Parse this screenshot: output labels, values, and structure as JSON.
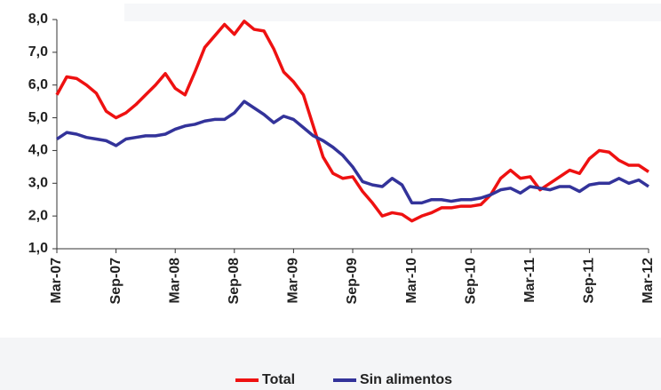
{
  "chart_data": {
    "type": "line",
    "categories": [
      "Mar-07",
      null,
      null,
      null,
      null,
      null,
      "Sep-07",
      null,
      null,
      null,
      null,
      null,
      "Mar-08",
      null,
      null,
      null,
      null,
      null,
      "Sep-08",
      null,
      null,
      null,
      null,
      null,
      "Mar-09",
      null,
      null,
      null,
      null,
      null,
      "Sep-09",
      null,
      null,
      null,
      null,
      null,
      "Mar-10",
      null,
      null,
      null,
      null,
      null,
      "Sep-10",
      null,
      null,
      null,
      null,
      null,
      "Mar-11",
      null,
      null,
      null,
      null,
      null,
      "Sep-11",
      null,
      null,
      null,
      null,
      null,
      "Mar-12"
    ],
    "series": [
      {
        "name": "Total",
        "color": "#ee1111",
        "values": [
          5.7,
          6.25,
          6.2,
          6.0,
          5.75,
          5.2,
          5.0,
          5.15,
          5.4,
          5.7,
          6.0,
          6.35,
          5.9,
          5.7,
          6.4,
          7.15,
          7.5,
          7.85,
          7.55,
          7.95,
          7.7,
          7.65,
          7.1,
          6.4,
          6.1,
          5.7,
          4.75,
          3.8,
          3.3,
          3.15,
          3.2,
          2.75,
          2.4,
          2.0,
          2.1,
          2.05,
          1.85,
          2.0,
          2.1,
          2.25,
          2.25,
          2.3,
          2.3,
          2.35,
          2.65,
          3.15,
          3.4,
          3.15,
          3.2,
          2.8,
          3.0,
          3.2,
          3.4,
          3.3,
          3.75,
          4.0,
          3.95,
          3.7,
          3.55,
          3.55,
          3.35
        ]
      },
      {
        "name": "Sin alimentos",
        "color": "#33339a",
        "values": [
          4.35,
          4.55,
          4.5,
          4.4,
          4.35,
          4.3,
          4.15,
          4.35,
          4.4,
          4.45,
          4.45,
          4.5,
          4.65,
          4.75,
          4.8,
          4.9,
          4.95,
          4.95,
          5.15,
          5.5,
          5.3,
          5.1,
          4.85,
          5.05,
          4.95,
          4.7,
          4.45,
          4.3,
          4.1,
          3.85,
          3.5,
          3.05,
          2.95,
          2.9,
          3.15,
          2.95,
          2.4,
          2.4,
          2.5,
          2.5,
          2.45,
          2.5,
          2.5,
          2.55,
          2.65,
          2.8,
          2.85,
          2.7,
          2.9,
          2.85,
          2.8,
          2.9,
          2.9,
          2.75,
          2.95,
          3.0,
          3.0,
          3.15,
          3.0,
          3.1,
          2.9
        ]
      }
    ],
    "ylim": [
      1,
      8
    ],
    "yticks": [
      {
        "value": 1,
        "label": "1,0"
      },
      {
        "value": 2,
        "label": "2,0"
      },
      {
        "value": 3,
        "label": "3,0"
      },
      {
        "value": 4,
        "label": "4,0"
      },
      {
        "value": 5,
        "label": "5,0"
      },
      {
        "value": 6,
        "label": "6,0"
      },
      {
        "value": 7,
        "label": "7,0"
      },
      {
        "value": 8,
        "label": "8,0"
      }
    ],
    "grid": false
  }
}
